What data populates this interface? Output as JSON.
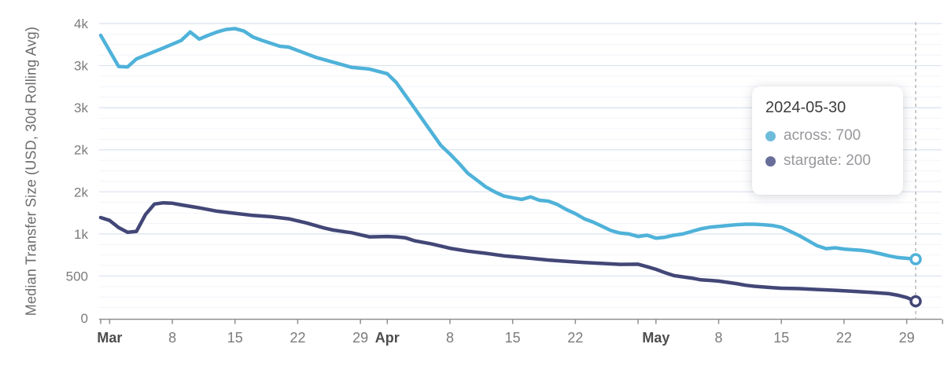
{
  "chart_data": {
    "type": "line",
    "title": "",
    "ylabel": "Median Transfer Size (USD, 30d Rolling Avg)",
    "xlabel": "",
    "x_domain": [
      "2024-02-29",
      "2024-06-02"
    ],
    "y_domain": [
      0,
      3500
    ],
    "grid": "horizontal-major-and-minor",
    "y_minor_step": 125,
    "y_ticks": [
      {
        "value": 0,
        "label": "0"
      },
      {
        "value": 500,
        "label": "500"
      },
      {
        "value": 1000,
        "label": "1k"
      },
      {
        "value": 1500,
        "label": "2k"
      },
      {
        "value": 2000,
        "label": "2k"
      },
      {
        "value": 2500,
        "label": "3k"
      },
      {
        "value": 3000,
        "label": "3k"
      },
      {
        "value": 3500,
        "label": "4k"
      }
    ],
    "x_ticks": [
      {
        "day": 1,
        "label": "Mar",
        "bold": true
      },
      {
        "day": 8,
        "label": "8",
        "bold": false
      },
      {
        "day": 15,
        "label": "15",
        "bold": false
      },
      {
        "day": 22,
        "label": "22",
        "bold": false
      },
      {
        "day": 29,
        "label": "29",
        "bold": false
      },
      {
        "day": 32,
        "label": "Apr",
        "bold": true
      },
      {
        "day": 39,
        "label": "8",
        "bold": false
      },
      {
        "day": 46,
        "label": "15",
        "bold": false
      },
      {
        "day": 53,
        "label": "22",
        "bold": false
      },
      {
        "day": 62,
        "label": "May",
        "bold": true
      },
      {
        "day": 69,
        "label": "8",
        "bold": false
      },
      {
        "day": 76,
        "label": "15",
        "bold": false
      },
      {
        "day": 83,
        "label": "22",
        "bold": false
      },
      {
        "day": 90,
        "label": "29",
        "bold": false
      }
    ],
    "x_unlabeled_ticks": [
      0,
      60,
      94
    ],
    "hover_day": 91,
    "legend_position": "tooltip-only",
    "series": [
      {
        "name": "across",
        "color": "#4fb2d9",
        "dot_color": "#6ebcda",
        "last_value_displayed": "700",
        "points": [
          [
            0,
            3360
          ],
          [
            2,
            2990
          ],
          [
            3,
            2985
          ],
          [
            4,
            3080
          ],
          [
            7,
            3210
          ],
          [
            9,
            3300
          ],
          [
            10,
            3400
          ],
          [
            11,
            3315
          ],
          [
            12,
            3360
          ],
          [
            13,
            3400
          ],
          [
            14,
            3430
          ],
          [
            15,
            3440
          ],
          [
            16,
            3410
          ],
          [
            17,
            3340
          ],
          [
            18,
            3300
          ],
          [
            20,
            3230
          ],
          [
            21,
            3220
          ],
          [
            24,
            3100
          ],
          [
            26,
            3040
          ],
          [
            28,
            2980
          ],
          [
            30,
            2960
          ],
          [
            32,
            2905
          ],
          [
            33,
            2800
          ],
          [
            34,
            2650
          ],
          [
            35,
            2500
          ],
          [
            36,
            2350
          ],
          [
            37,
            2200
          ],
          [
            38,
            2050
          ],
          [
            39,
            1950
          ],
          [
            40,
            1840
          ],
          [
            41,
            1720
          ],
          [
            42,
            1640
          ],
          [
            43,
            1560
          ],
          [
            44,
            1500
          ],
          [
            45,
            1450
          ],
          [
            46,
            1430
          ],
          [
            47,
            1410
          ],
          [
            48,
            1440
          ],
          [
            49,
            1400
          ],
          [
            50,
            1390
          ],
          [
            51,
            1350
          ],
          [
            52,
            1290
          ],
          [
            53,
            1240
          ],
          [
            54,
            1180
          ],
          [
            55,
            1140
          ],
          [
            56,
            1090
          ],
          [
            57,
            1040
          ],
          [
            58,
            1010
          ],
          [
            59,
            1000
          ],
          [
            60,
            970
          ],
          [
            61,
            985
          ],
          [
            62,
            950
          ],
          [
            63,
            960
          ],
          [
            64,
            985
          ],
          [
            65,
            1000
          ],
          [
            66,
            1030
          ],
          [
            67,
            1060
          ],
          [
            68,
            1080
          ],
          [
            69,
            1090
          ],
          [
            70,
            1100
          ],
          [
            71,
            1110
          ],
          [
            72,
            1115
          ],
          [
            73,
            1115
          ],
          [
            74,
            1110
          ],
          [
            75,
            1100
          ],
          [
            76,
            1080
          ],
          [
            77,
            1030
          ],
          [
            78,
            980
          ],
          [
            79,
            920
          ],
          [
            80,
            860
          ],
          [
            81,
            825
          ],
          [
            82,
            835
          ],
          [
            83,
            820
          ],
          [
            84,
            812
          ],
          [
            85,
            805
          ],
          [
            86,
            790
          ],
          [
            87,
            765
          ],
          [
            88,
            740
          ],
          [
            89,
            720
          ],
          [
            90,
            710
          ],
          [
            91,
            700
          ]
        ]
      },
      {
        "name": "stargate",
        "color": "#424777",
        "dot_color": "#686d99",
        "last_value_displayed": "200",
        "points": [
          [
            0,
            1195
          ],
          [
            1,
            1160
          ],
          [
            2,
            1075
          ],
          [
            3,
            1020
          ],
          [
            4,
            1030
          ],
          [
            5,
            1230
          ],
          [
            6,
            1355
          ],
          [
            7,
            1370
          ],
          [
            8,
            1365
          ],
          [
            9,
            1345
          ],
          [
            11,
            1310
          ],
          [
            13,
            1270
          ],
          [
            15,
            1245
          ],
          [
            17,
            1220
          ],
          [
            19,
            1205
          ],
          [
            21,
            1180
          ],
          [
            23,
            1130
          ],
          [
            25,
            1070
          ],
          [
            26,
            1045
          ],
          [
            28,
            1015
          ],
          [
            30,
            965
          ],
          [
            32,
            970
          ],
          [
            33,
            965
          ],
          [
            34,
            955
          ],
          [
            35,
            920
          ],
          [
            37,
            880
          ],
          [
            39,
            830
          ],
          [
            41,
            795
          ],
          [
            43,
            770
          ],
          [
            45,
            740
          ],
          [
            46,
            730
          ],
          [
            48,
            710
          ],
          [
            50,
            690
          ],
          [
            52,
            675
          ],
          [
            54,
            660
          ],
          [
            56,
            650
          ],
          [
            58,
            638
          ],
          [
            60,
            640
          ],
          [
            61,
            610
          ],
          [
            62,
            580
          ],
          [
            63,
            540
          ],
          [
            64,
            505
          ],
          [
            65,
            490
          ],
          [
            66,
            475
          ],
          [
            67,
            455
          ],
          [
            68,
            448
          ],
          [
            69,
            440
          ],
          [
            70,
            425
          ],
          [
            71,
            410
          ],
          [
            72,
            390
          ],
          [
            73,
            378
          ],
          [
            74,
            370
          ],
          [
            75,
            362
          ],
          [
            76,
            355
          ],
          [
            78,
            350
          ],
          [
            80,
            340
          ],
          [
            82,
            330
          ],
          [
            84,
            318
          ],
          [
            86,
            305
          ],
          [
            88,
            290
          ],
          [
            89,
            272
          ],
          [
            90,
            245
          ],
          [
            91,
            200
          ]
        ]
      }
    ],
    "colors": {
      "grid_major": "#dbe2ee",
      "grid_minor": "#f1f4fa",
      "axis": "#8f8f8f",
      "tick_label": "#7b7b7b",
      "month_label": "#4d4d4d",
      "hover_line": "#adadad"
    }
  },
  "tooltip": {
    "date": "2024-05-30",
    "rows": [
      {
        "text": "across: 700",
        "color": "#6ebcda"
      },
      {
        "text": "stargate: 200",
        "color": "#686d99"
      }
    ]
  }
}
